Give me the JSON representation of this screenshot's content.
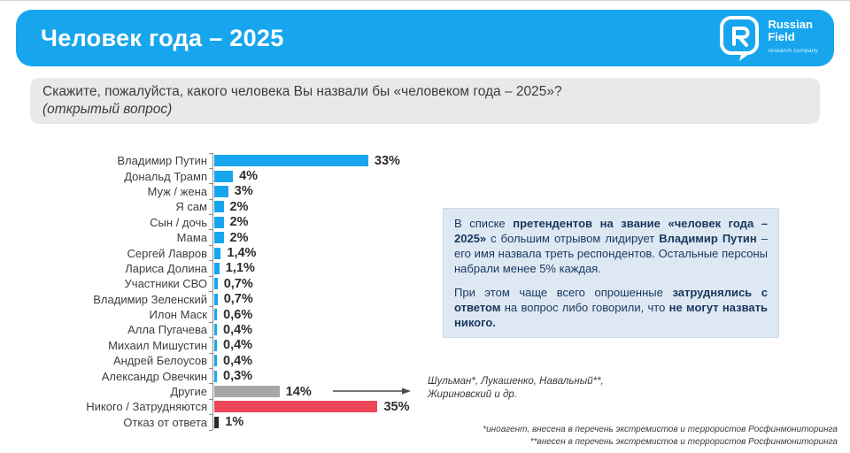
{
  "header": {
    "title": "Человек года – 2025",
    "brand": {
      "name_line1": "Russian",
      "name_line2": "Field",
      "tagline": "research company"
    }
  },
  "question": {
    "line1": "Скажите, пожалуйста, какого человека Вы назвали бы «человеком года – 2025»?",
    "line2": "(открытый вопрос)"
  },
  "colors": {
    "accent_blue": "#17a6ee",
    "bar_blue": "#17a6ee",
    "bar_gray": "#a7a7a7",
    "bar_red": "#f0465a",
    "bar_dark": "#2b2b2b",
    "question_bg": "#e9e9e9",
    "insight_bg": "#dee8f3",
    "insight_text": "#17375e"
  },
  "chart_data": {
    "type": "bar",
    "orientation": "horizontal",
    "xlim": [
      0,
      35
    ],
    "grid": false,
    "legend": false,
    "categories": [
      "Владимир Путин",
      "Дональд Трамп",
      "Муж / жена",
      "Я сам",
      "Сын / дочь",
      "Мама",
      "Сергей Лавров",
      "Лариса Долина",
      "Участники СВО",
      "Владимир Зеленский",
      "Илон Маск",
      "Алла Пугачева",
      "Михаил Мишустин",
      "Андрей Белоусов",
      "Александр Овечкин",
      "Другие",
      "Никого / Затрудняются",
      "Отказ от ответа"
    ],
    "values": [
      33,
      4,
      3,
      2,
      2,
      2,
      1.4,
      1.1,
      0.7,
      0.7,
      0.6,
      0.4,
      0.4,
      0.4,
      0.3,
      14,
      35,
      1
    ],
    "value_labels": [
      "33%",
      "4%",
      "3%",
      "2%",
      "2%",
      "2%",
      "1,4%",
      "1,1%",
      "0,7%",
      "0,7%",
      "0,6%",
      "0,4%",
      "0,4%",
      "0,4%",
      "0,3%",
      "14%",
      "35%",
      "1%"
    ],
    "bar_colors": [
      "#17a6ee",
      "#17a6ee",
      "#17a6ee",
      "#17a6ee",
      "#17a6ee",
      "#17a6ee",
      "#17a6ee",
      "#17a6ee",
      "#17a6ee",
      "#17a6ee",
      "#17a6ee",
      "#17a6ee",
      "#17a6ee",
      "#17a6ee",
      "#17a6ee",
      "#a7a7a7",
      "#f0465a",
      "#2b2b2b"
    ]
  },
  "annotation": {
    "line1": "Шульман*, Лукашенко, Навальный**,",
    "line2": "Жириновский и др."
  },
  "insight": {
    "paragraphs": [
      [
        {
          "t": "В списке ",
          "b": false
        },
        {
          "t": "претендентов на звание «человек года – 2025»",
          "b": true
        },
        {
          "t": " с большим отрывом лидирует ",
          "b": false
        },
        {
          "t": "Владимир Путин",
          "b": true
        },
        {
          "t": " – его имя назвала треть респондентов. Остальные персоны набрали менее 5% каждая.",
          "b": false
        }
      ],
      [
        {
          "t": "При этом чаще всего опрошенные ",
          "b": false
        },
        {
          "t": "затруднялись с ответом",
          "b": true
        },
        {
          "t": " на вопрос либо говорили, что ",
          "b": false
        },
        {
          "t": "не могут назвать никого.",
          "b": true
        }
      ]
    ]
  },
  "footnotes": [
    "*иноагент, внесена в перечень экстремистов и террористов Росфинмониторинга",
    "**внесен в перечень экстремистов и террористов Росфинмониторинга"
  ]
}
